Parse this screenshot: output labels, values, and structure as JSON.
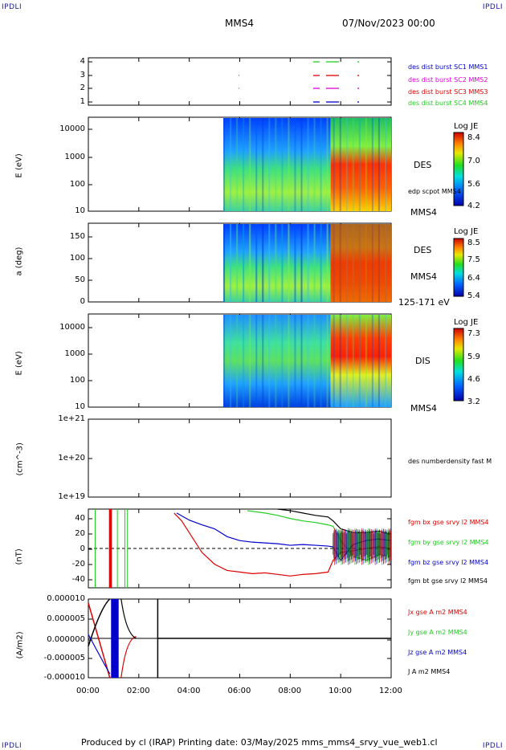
{
  "header": {
    "corner_left": "IPDLI",
    "corner_right": "IPDLI",
    "spacecraft": "MMS4",
    "date_time": "07/Nov/2023 00:00"
  },
  "footer": {
    "text": "Produced by cl (IRAP)   Printing date: 03/May/2025   mms_mms4_srvy_vue_web1.cl",
    "corner_left": "IPDLI",
    "corner_right": "IPDLI"
  },
  "colors": {
    "black": "#000000",
    "red": "#dd0000",
    "green": "#22cc22",
    "blue": "#0000cc",
    "magenta": "#dd00dd"
  },
  "chart_data": [
    {
      "type": "scatter",
      "panel": "burst",
      "yticks": [
        "4",
        "3",
        "2",
        "1"
      ],
      "legend": [
        {
          "name": "des dist burst SC1 MMS1",
          "color": "#0000cc"
        },
        {
          "name": "des dist burst SC2 MMS2",
          "color": "#dd00dd"
        },
        {
          "name": "des dist burst SC3 MMS3",
          "color": "#dd0000"
        },
        {
          "name": "des dist burst SC4 MMS4",
          "color": "#22cc22"
        }
      ]
    },
    {
      "type": "heatmap",
      "panel": "des-energy",
      "ylabel": "E (eV)",
      "yticks": [
        "10000",
        "1000",
        "100",
        "10"
      ],
      "instrument": "DES",
      "overlay": "edp scpot MMS4",
      "spacecraft": "MMS4",
      "colorbar": {
        "title": "Log JE",
        "ticks": [
          "8.4",
          "7.0",
          "5.6",
          "4.2"
        ]
      }
    },
    {
      "type": "heatmap",
      "panel": "des-pitch",
      "ylabel": "a (deg)",
      "yticks": [
        "150",
        "100",
        "50",
        "0"
      ],
      "instrument": "DES",
      "spacecraft": "MMS4",
      "energy_range": "125-171 eV",
      "colorbar": {
        "title": "Log JE",
        "ticks": [
          "8.5",
          "7.5",
          "6.4",
          "5.4"
        ]
      }
    },
    {
      "type": "heatmap",
      "panel": "dis-energy",
      "ylabel": "E (eV)",
      "yticks": [
        "10000",
        "1000",
        "100",
        "10"
      ],
      "instrument": "DIS",
      "spacecraft": "MMS4",
      "colorbar": {
        "title": "Log JE",
        "ticks": [
          "7.3",
          "5.9",
          "4.6",
          "3.2"
        ]
      }
    },
    {
      "type": "line",
      "panel": "density",
      "ylabel": "(cm^-3)",
      "yticks": [
        "1e+21",
        "1e+20",
        "1e+19"
      ],
      "series": [
        {
          "name": "des numberdensity fast M",
          "values": []
        }
      ]
    },
    {
      "type": "line",
      "panel": "fgm",
      "ylabel": "(nT)",
      "yticks": [
        "40",
        "20",
        "0",
        "-20",
        "-40"
      ],
      "ylim": [
        -50,
        50
      ],
      "series": [
        {
          "name": "fgm bx gse srvy l2 MMS4",
          "color": "#dd0000",
          "x": [
            3.4,
            3.7,
            4.0,
            4.5,
            5.0,
            5.5,
            6.0,
            6.5,
            7.0,
            7.5,
            8.0,
            8.5,
            9.0,
            9.5,
            9.7,
            10.0,
            10.5,
            11.0,
            11.5,
            12.0
          ],
          "y": [
            45,
            35,
            20,
            -5,
            -20,
            -28,
            -30,
            -32,
            -31,
            -33,
            -35,
            -33,
            -32,
            -30,
            -15,
            -5,
            -3,
            0,
            2,
            0
          ]
        },
        {
          "name": "fgm by gse srvy l2 MMS4",
          "color": "#22cc22",
          "x": [
            6.3,
            7.0,
            7.5,
            8.0,
            8.5,
            9.0,
            9.5,
            9.7,
            10.0,
            10.5,
            11.0,
            11.5,
            12.0
          ],
          "y": [
            48,
            45,
            42,
            38,
            35,
            33,
            30,
            28,
            10,
            -10,
            -15,
            -8,
            -10
          ]
        },
        {
          "name": "fgm bz gse srvy l2 MMS4",
          "color": "#0000cc",
          "x": [
            3.5,
            4.0,
            4.5,
            5.0,
            5.5,
            6.0,
            6.5,
            7.0,
            7.5,
            8.0,
            8.5,
            9.0,
            9.5,
            9.7,
            10.0,
            10.5,
            11.0,
            11.5,
            12.0
          ],
          "y": [
            45,
            36,
            30,
            25,
            15,
            10,
            8,
            7,
            6,
            4,
            5,
            4,
            3,
            2,
            -15,
            5,
            10,
            12,
            10
          ]
        },
        {
          "name": "fgm bt gse srvy l2 MMS4",
          "color": "#000000",
          "x": [
            7.5,
            8.0,
            8.5,
            9.0,
            9.5,
            9.7,
            10.0,
            10.5,
            11.0,
            11.5,
            12.0
          ],
          "y": [
            50,
            48,
            45,
            42,
            40,
            35,
            25,
            20,
            20,
            22,
            18
          ]
        }
      ]
    },
    {
      "type": "line",
      "panel": "current",
      "ylabel": "(A/m2)",
      "yticks": [
        "0.000010",
        "0.000005",
        "0.000000",
        "-0.000005",
        "-0.000010"
      ],
      "ylim": [
        -1e-05,
        1e-05
      ],
      "series": [
        {
          "name": "Jx gse A m2 MMS4",
          "color": "#dd0000"
        },
        {
          "name": "Jy gse A m2 MMS4",
          "color": "#22cc22"
        },
        {
          "name": "Jz gse A m2 MMS4",
          "color": "#0000cc"
        },
        {
          "name": "J A m2 MMS4",
          "color": "#000000"
        }
      ]
    },
    {
      "type": "axis",
      "panel": "time",
      "xticks": [
        "00:00",
        "02:00",
        "04:00",
        "06:00",
        "08:00",
        "10:00",
        "12:00"
      ],
      "xlim": [
        0,
        12
      ]
    }
  ]
}
